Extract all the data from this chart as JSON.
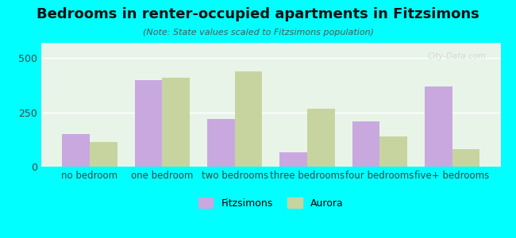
{
  "title": "Bedrooms in renter-occupied apartments in Fitzsimons",
  "subtitle": "(Note: State values scaled to Fitzsimons population)",
  "categories": [
    "no bedroom",
    "one bedroom",
    "two bedrooms",
    "three bedrooms",
    "four bedrooms",
    "five+ bedrooms"
  ],
  "fitzsimons": [
    150,
    400,
    220,
    65,
    210,
    370
  ],
  "aurora": [
    115,
    410,
    440,
    265,
    140,
    80
  ],
  "fitzsimons_color": "#c9a8e0",
  "aurora_color": "#c8d4a0",
  "background_color": "#00ffff",
  "plot_bg_top": "#e8f5e8",
  "plot_bg_bottom": "#f0fff0",
  "ylim": [
    0,
    570
  ],
  "yticks": [
    0,
    250,
    500
  ],
  "bar_width": 0.38
}
